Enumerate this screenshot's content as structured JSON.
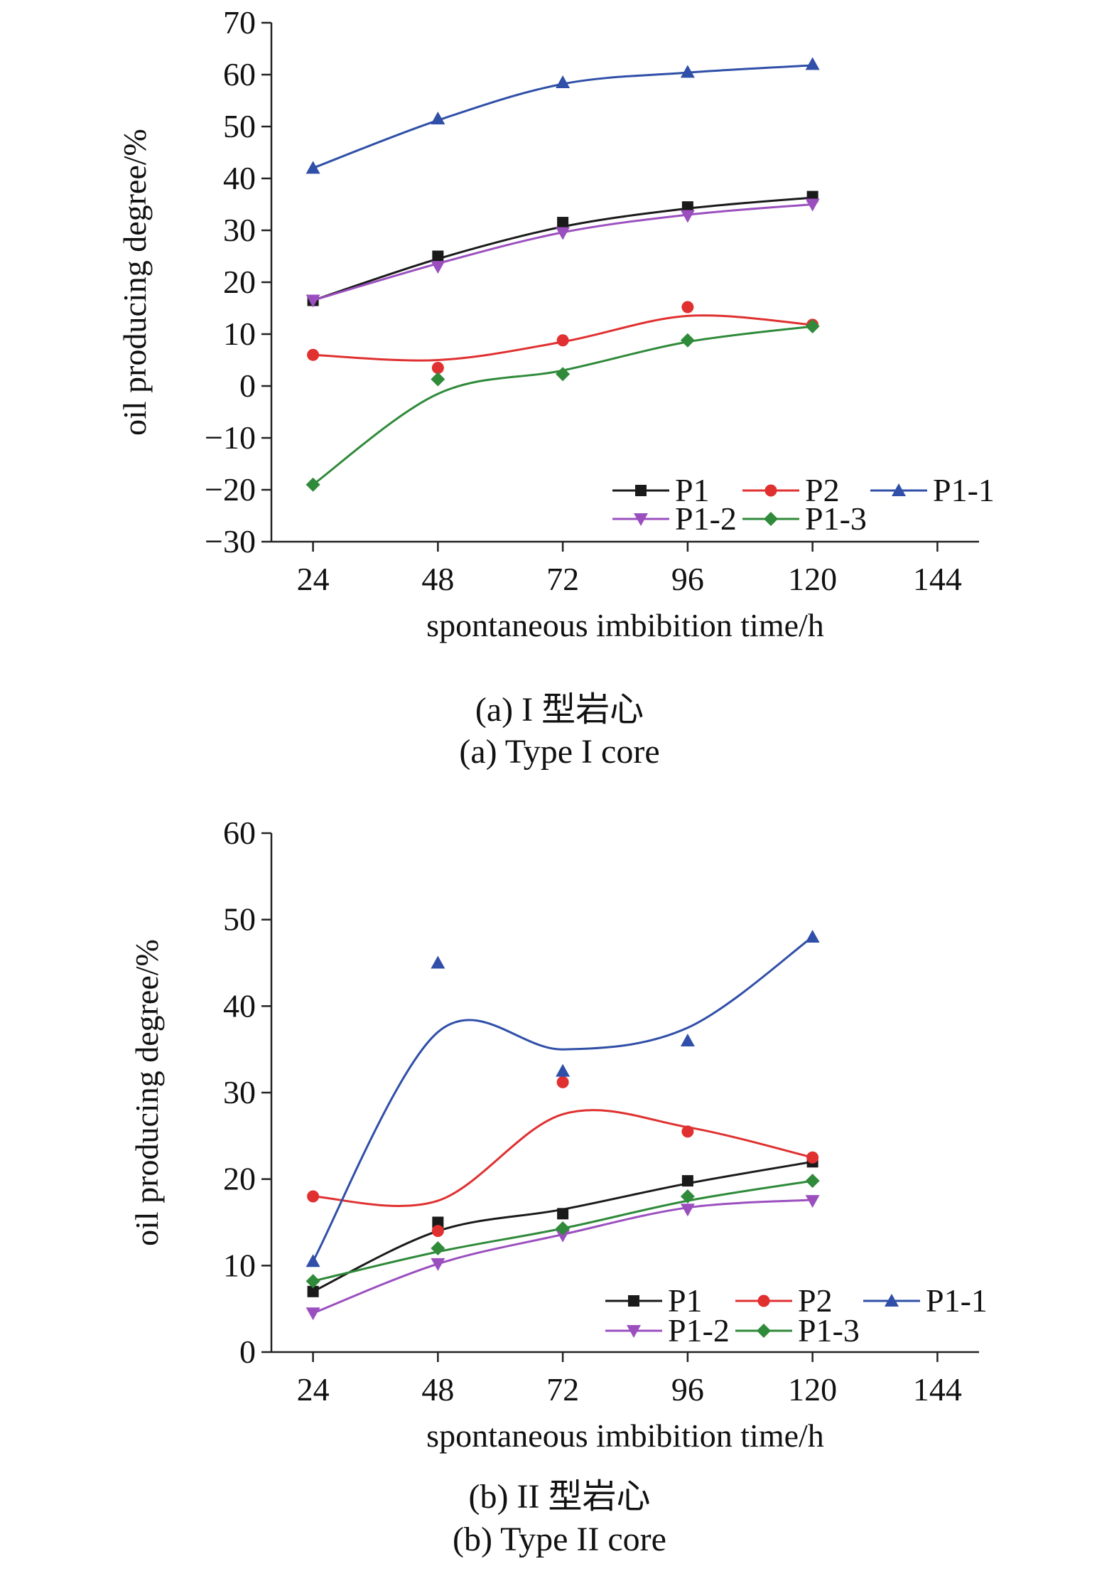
{
  "chart_data": [
    {
      "type": "line",
      "xlabel": "spontaneous imbibition time/h",
      "ylabel": "oil producing degree/%",
      "xlim": [
        16,
        152
      ],
      "ylim": [
        -30,
        70
      ],
      "xticks": [
        24,
        48,
        72,
        96,
        120,
        144
      ],
      "yticks": [
        -30,
        -20,
        -10,
        0,
        10,
        20,
        30,
        40,
        50,
        60,
        70
      ],
      "x": [
        24,
        48,
        72,
        96,
        120
      ],
      "series": [
        {
          "name": "P1",
          "color": "#1a1a1a",
          "marker": "square",
          "values": [
            16.5,
            25,
            31.5,
            34.5,
            36.5
          ],
          "curve": [
            16.5,
            24.5,
            30.7,
            34.2,
            36.3
          ]
        },
        {
          "name": "P2",
          "color": "#e03030",
          "marker": "circle",
          "values": [
            6,
            3.5,
            8.8,
            15.2,
            11.8
          ],
          "curve": [
            6,
            5,
            8.5,
            13.5,
            11.8
          ]
        },
        {
          "name": "P1-1",
          "color": "#2f4fa8",
          "marker": "triangle-up",
          "values": [
            42,
            51.5,
            58.5,
            60.5,
            62
          ],
          "curve": [
            42,
            51.2,
            58.2,
            60.4,
            61.8
          ]
        },
        {
          "name": "P1-2",
          "color": "#9b4fbf",
          "marker": "triangle-down",
          "values": [
            16.5,
            23,
            29.5,
            32.8,
            35
          ],
          "curve": [
            16.5,
            23.6,
            29.6,
            33,
            35
          ]
        },
        {
          "name": "P1-3",
          "color": "#2f8a3a",
          "marker": "diamond",
          "values": [
            -19,
            1.3,
            2.3,
            8.8,
            11.5
          ],
          "curve": [
            -19,
            -1.5,
            3,
            8.5,
            11.5
          ]
        }
      ],
      "legend": "bottom-right",
      "caption_cn": "(a) I 型岩心",
      "caption_en": "(a) Type I core"
    },
    {
      "type": "line",
      "xlabel": "spontaneous imbibition time/h",
      "ylabel": "oil producing degree/%",
      "xlim": [
        16,
        152
      ],
      "ylim": [
        0,
        60
      ],
      "xticks": [
        24,
        48,
        72,
        96,
        120,
        144
      ],
      "yticks": [
        0,
        10,
        20,
        30,
        40,
        50,
        60
      ],
      "x": [
        24,
        48,
        72,
        96,
        120
      ],
      "series": [
        {
          "name": "P1",
          "color": "#1a1a1a",
          "marker": "square",
          "values": [
            7,
            15,
            16,
            19.8,
            22
          ],
          "curve": [
            7,
            14,
            16.5,
            19.5,
            22
          ]
        },
        {
          "name": "P2",
          "color": "#e03030",
          "marker": "circle",
          "values": [
            18,
            14,
            31.2,
            25.5,
            22.5
          ],
          "curve": [
            18,
            17.5,
            27.5,
            26,
            22.5
          ]
        },
        {
          "name": "P1-1",
          "color": "#2f4fa8",
          "marker": "triangle-up",
          "values": [
            10.5,
            45,
            32.5,
            36,
            48
          ],
          "curve": [
            10.5,
            37,
            35,
            37.5,
            48
          ]
        },
        {
          "name": "P1-2",
          "color": "#9b4fbf",
          "marker": "triangle-down",
          "values": [
            4.5,
            10.2,
            13.5,
            16.5,
            17.5
          ],
          "curve": [
            4.5,
            10.2,
            13.6,
            16.7,
            17.6
          ]
        },
        {
          "name": "P1-3",
          "color": "#2f8a3a",
          "marker": "diamond",
          "values": [
            8.2,
            12,
            14.3,
            18,
            19.8
          ],
          "curve": [
            8.2,
            11.6,
            14.3,
            17.5,
            19.8
          ]
        }
      ],
      "legend": "bottom-right",
      "caption_cn": "(b) II 型岩心",
      "caption_en": "(b) Type II core"
    }
  ]
}
